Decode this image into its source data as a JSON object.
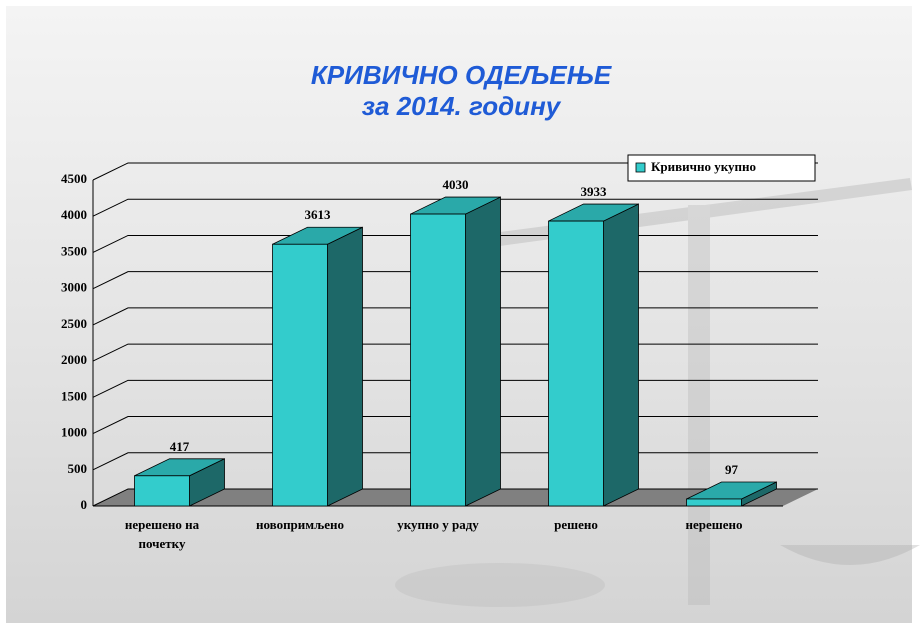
{
  "chart_data": {
    "type": "bar3d",
    "title": "КРИВИЧНО ОДЕЉЕЊЕ",
    "subtitle": "за 2014. годину",
    "categories": [
      "нерешено на почетку",
      "новопримљено",
      "укупно у раду",
      "решено",
      "нерешено"
    ],
    "series": [
      {
        "name": "Кривично укупно",
        "color": "#33cccc",
        "values": [
          417,
          3613,
          4030,
          3933,
          97
        ]
      }
    ],
    "ylim": [
      0,
      4500
    ],
    "yticks": [
      0,
      500,
      1000,
      1500,
      2000,
      2500,
      3000,
      3500,
      4000,
      4500
    ],
    "grid": true,
    "legend": "top-right"
  }
}
